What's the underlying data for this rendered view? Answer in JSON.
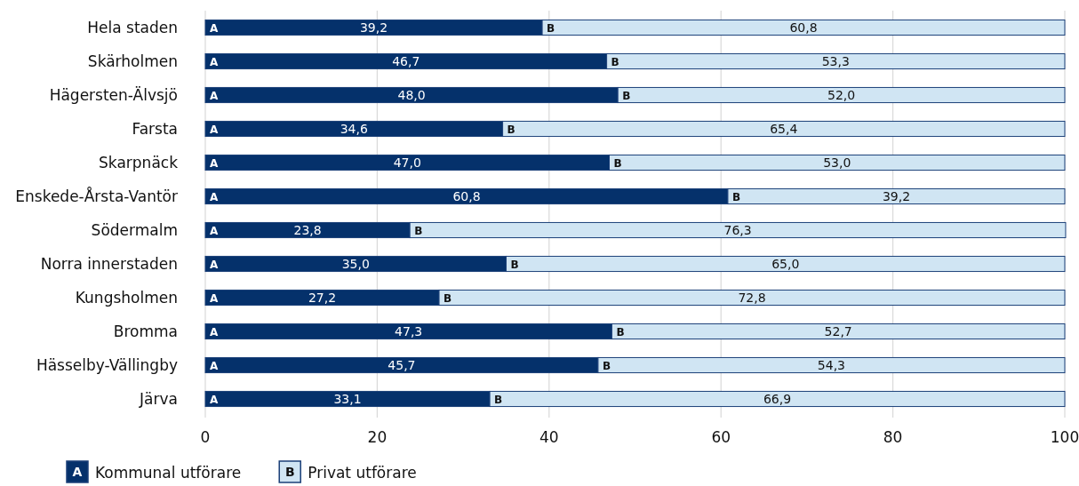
{
  "chart_data": {
    "type": "bar",
    "orientation": "horizontal",
    "stacked": true,
    "categories": [
      "Hela staden",
      "Skärholmen",
      "Hägersten-Älvsjö",
      "Farsta",
      "Skarpnäck",
      "Enskede-Årsta-Vantör",
      "Södermalm",
      "Norra innerstaden",
      "Kungsholmen",
      "Bromma",
      "Hässelby-Vällingby",
      "Järva"
    ],
    "series": [
      {
        "name": "Kommunal utförare",
        "color": "#05316b",
        "values": [
          39.2,
          46.7,
          48.0,
          34.6,
          47.0,
          60.8,
          23.8,
          35.0,
          27.2,
          47.3,
          45.7,
          33.1
        ],
        "value_labels": [
          "39,2",
          "46,7",
          "48,0",
          "34,6",
          "47,0",
          "60,8",
          "23,8",
          "35,0",
          "27,2",
          "47,3",
          "45,7",
          "33,1"
        ]
      },
      {
        "name": "Privat utförare",
        "color": "#d0e5f3",
        "values": [
          60.8,
          53.3,
          52.0,
          65.4,
          53.0,
          39.2,
          76.3,
          65.0,
          72.8,
          52.7,
          54.3,
          66.9
        ],
        "value_labels": [
          "60,8",
          "53,3",
          "52,0",
          "65,4",
          "53,0",
          "39,2",
          "76,3",
          "65,0",
          "72,8",
          "52,7",
          "54,3",
          "66,9"
        ]
      }
    ],
    "xlim": [
      0,
      100
    ],
    "xticks": [
      0,
      20,
      40,
      60,
      80,
      100
    ],
    "grid": "x",
    "legend": "bottom left",
    "annotations": [
      {
        "text": "A",
        "x": 0,
        "y": "Hela staden"
      },
      {
        "text": "B",
        "x": 39.2,
        "y": "Hela staden"
      },
      {
        "text": "A",
        "x": 0,
        "y": "Skärholmen"
      },
      {
        "text": "B",
        "x": 46.7,
        "y": "Skärholmen"
      },
      {
        "text": "A",
        "x": 0,
        "y": "Hägersten-Älvsjö"
      },
      {
        "text": "B",
        "x": 48.0,
        "y": "Hägersten-Älvsjö"
      },
      {
        "text": "A",
        "x": 0,
        "y": "Farsta"
      },
      {
        "text": "B",
        "x": 34.6,
        "y": "Farsta"
      },
      {
        "text": "A",
        "x": 0,
        "y": "Skarpnäck"
      },
      {
        "text": "B",
        "x": 47.0,
        "y": "Skarpnäck"
      },
      {
        "text": "A",
        "x": 0,
        "y": "Enskede-Årsta-Vantör"
      },
      {
        "text": "B",
        "x": 60.8,
        "y": "Enskede-Årsta-Vantör"
      },
      {
        "text": "A",
        "x": 0,
        "y": "Södermalm"
      },
      {
        "text": "B",
        "x": 23.8,
        "y": "Södermalm"
      },
      {
        "text": "A",
        "x": 0,
        "y": "Norra innerstaden"
      },
      {
        "text": "B",
        "x": 35.0,
        "y": "Norra innerstaden"
      },
      {
        "text": "A",
        "x": 0,
        "y": "Kungsholmen"
      },
      {
        "text": "B",
        "x": 27.2,
        "y": "Kungsholmen"
      },
      {
        "text": "A",
        "x": 0,
        "y": "Bromma"
      },
      {
        "text": "B",
        "x": 47.3,
        "y": "Bromma"
      },
      {
        "text": "A",
        "x": 0,
        "y": "Hässelby-Vällingby"
      },
      {
        "text": "B",
        "x": 45.7,
        "y": "Hässelby-Vällingby"
      },
      {
        "text": "A",
        "x": 0,
        "y": "Järva"
      },
      {
        "text": "B",
        "x": 33.1,
        "y": "Järva"
      }
    ]
  }
}
